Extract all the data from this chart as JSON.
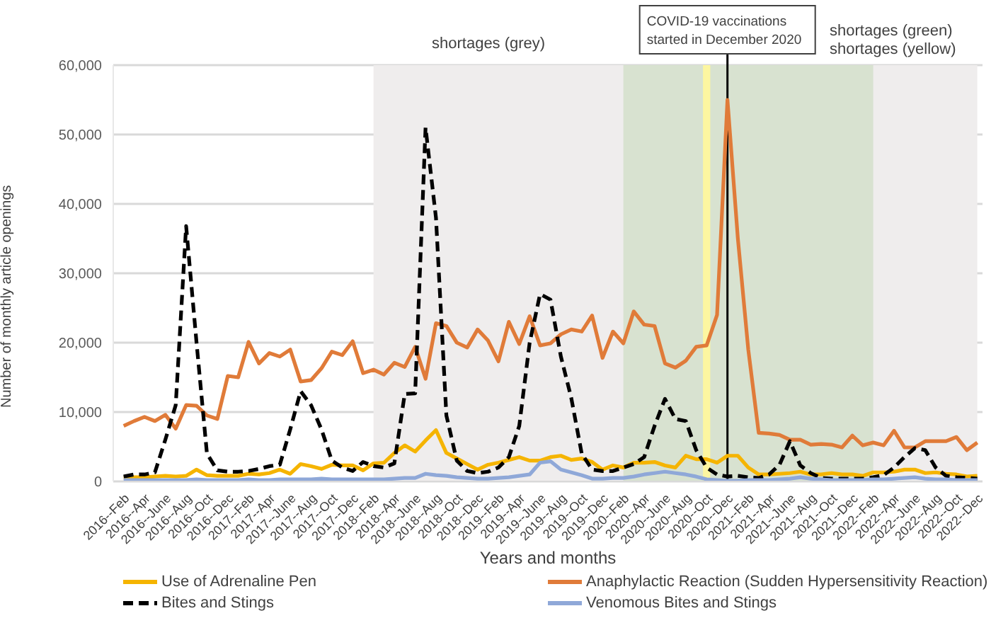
{
  "chart_data": {
    "type": "line",
    "xlabel": "Years and months",
    "ylabel": "Number of monthly article openings",
    "annotations": [
      "shortages (grey)",
      "shortages (green)",
      "shortages (yellow)"
    ],
    "categories": [
      "2016--Feb",
      null,
      "2016--Apr",
      null,
      "2016--June",
      null,
      "2016--Aug",
      null,
      "2016--Oct",
      null,
      "2016--Dec",
      null,
      "2017--Feb",
      null,
      "2017--Apr",
      null,
      "2017--June",
      null,
      "2017--Aug",
      null,
      "2017--Oct",
      null,
      "2017--Dec",
      null,
      "2018--Feb",
      null,
      "2018--Apr",
      null,
      "2018--June",
      null,
      "2018--Aug",
      null,
      "2018--Oct",
      null,
      "2018--Dec",
      null,
      "2019--Feb",
      null,
      "2019--Apr",
      null,
      "2019--June",
      null,
      "2019--Aug",
      null,
      "2019--Oct",
      null,
      "2019--Dec",
      null,
      "2020--Feb",
      null,
      "2020--Apr",
      null,
      "2020--June",
      null,
      "2020--Aug",
      null,
      "2020--Oct",
      null,
      "2020--Dec",
      null,
      "2021--Feb",
      null,
      "2021--Apr",
      null,
      "2021--June",
      null,
      "2021--Aug",
      null,
      "2021--Oct",
      null,
      "2021--Dec",
      null,
      "2022--Feb",
      null,
      "2022--Apr",
      null,
      "2022--June",
      null,
      "2022--Aug",
      null,
      "2022--Oct",
      null,
      "2022--Dec"
    ],
    "series": [
      {
        "name": "Use of Adrenaline Pen",
        "color": "#f5b400",
        "line_style": "solid",
        "values": [
          500,
          600,
          600,
          700,
          800,
          700,
          800,
          1700,
          900,
          800,
          800,
          800,
          1100,
          1000,
          1200,
          1700,
          1100,
          2500,
          2200,
          1800,
          2400,
          2300,
          2300,
          1600,
          2600,
          2700,
          4100,
          5200,
          4300,
          5900,
          7400,
          4100,
          3300,
          2500,
          1700,
          2400,
          2700,
          3100,
          3500,
          3000,
          3000,
          3500,
          3700,
          3100,
          3300,
          2800,
          1700,
          2300,
          2000,
          2700,
          2700,
          2800,
          2300,
          2000,
          3700,
          3200,
          3200,
          2700,
          3700,
          3700,
          2000,
          1000,
          1000,
          1100,
          1200,
          1400,
          1000,
          1000,
          1200,
          1000,
          1000,
          800,
          1300,
          1300,
          1400,
          1700,
          1700,
          1200,
          1300,
          1100,
          1000,
          700,
          800
        ]
      },
      {
        "name": "Anaphylactic Reaction (Sudden Hypersensitivity Reaction)",
        "color": "#e07b39",
        "line_style": "solid",
        "values": [
          8000,
          8700,
          9300,
          8700,
          9600,
          7600,
          11000,
          10900,
          9500,
          9000,
          15200,
          15000,
          20100,
          17000,
          18500,
          18000,
          19000,
          14400,
          14600,
          16300,
          18700,
          18200,
          20200,
          15600,
          16100,
          15400,
          17100,
          16500,
          19400,
          14800,
          22800,
          22400,
          20000,
          19300,
          21900,
          20300,
          17300,
          23000,
          19800,
          23800,
          19600,
          19900,
          21200,
          21900,
          21600,
          23900,
          17800,
          21600,
          19900,
          24500,
          22600,
          22400,
          17000,
          16400,
          17400,
          19400,
          19600,
          24000,
          55000,
          35000,
          19000,
          7000,
          6900,
          6700,
          6000,
          6000,
          5300,
          5400,
          5300,
          4900,
          6600,
          5200,
          5600,
          5200,
          7300,
          4900,
          4900,
          5800,
          5800,
          5800,
          6400,
          4500,
          5600
        ]
      },
      {
        "name": "Bites and Stings",
        "color": "#000000",
        "line_style": "dashed",
        "values": [
          700,
          1000,
          1000,
          1300,
          6000,
          11000,
          36800,
          20000,
          4000,
          1600,
          1400,
          1400,
          1500,
          1800,
          2200,
          2400,
          7500,
          13000,
          11000,
          7500,
          3000,
          2000,
          1500,
          2800,
          2200,
          2000,
          2600,
          12600,
          12700,
          51000,
          38000,
          9500,
          3000,
          1500,
          1200,
          1400,
          2000,
          3500,
          8000,
          20000,
          27000,
          26200,
          18000,
          12000,
          4000,
          1700,
          1500,
          1500,
          2000,
          2500,
          3500,
          8000,
          11900,
          9000,
          8700,
          4500,
          2000,
          1000,
          700,
          800,
          600,
          500,
          1000,
          2400,
          5800,
          2300,
          1200,
          500,
          400,
          400,
          400,
          400,
          600,
          900,
          2000,
          3500,
          4800,
          4500,
          2000,
          800,
          600,
          500,
          400
        ]
      },
      {
        "name": "Venomous Bites and Stings",
        "color": "#8fa8d8",
        "line_style": "solid",
        "values": [
          200,
          200,
          200,
          200,
          200,
          200,
          200,
          300,
          200,
          200,
          200,
          200,
          300,
          200,
          200,
          300,
          300,
          300,
          300,
          400,
          300,
          300,
          300,
          300,
          300,
          300,
          400,
          500,
          500,
          1100,
          900,
          800,
          600,
          500,
          400,
          400,
          500,
          600,
          800,
          1000,
          2700,
          2900,
          1700,
          1300,
          900,
          400,
          400,
          500,
          500,
          700,
          1000,
          1200,
          1400,
          1200,
          1000,
          700,
          300,
          200,
          100,
          100,
          200,
          200,
          200,
          300,
          400,
          600,
          400,
          300,
          200,
          200,
          200,
          200,
          300,
          300,
          400,
          500,
          600,
          400,
          300,
          300,
          200,
          200,
          200
        ]
      }
    ],
    "ylim": [
      0,
      60000
    ],
    "yticks": [
      0,
      {
        "value": 10000,
        "label": "10,000"
      },
      {
        "value": 20000,
        "label": "20,000"
      },
      {
        "value": 30000,
        "label": "30,000"
      },
      {
        "value": 40000,
        "label": "40,000"
      },
      {
        "value": 50000,
        "label": "50,000"
      },
      {
        "value": 60000,
        "label": "60,000"
      }
    ],
    "grid": "y",
    "legend": "bottom",
    "bands": [
      {
        "axis": "x",
        "from": "2018--Feb",
        "to": "2022--Dec",
        "color": "#efeded"
      },
      {
        "axis": "x",
        "from": "2020--Feb",
        "to": "2022--Feb",
        "color": "#d8e2d0"
      },
      {
        "axis": "x",
        "from": "2020--Oct",
        "to": "2020--Oct",
        "color": "#fdf6a0"
      }
    ],
    "ref_lines": [
      {
        "axis": "x",
        "value": "2020--Dec",
        "label": "COVID-19 vaccinations started in December 2020",
        "color": "#000000"
      }
    ]
  }
}
